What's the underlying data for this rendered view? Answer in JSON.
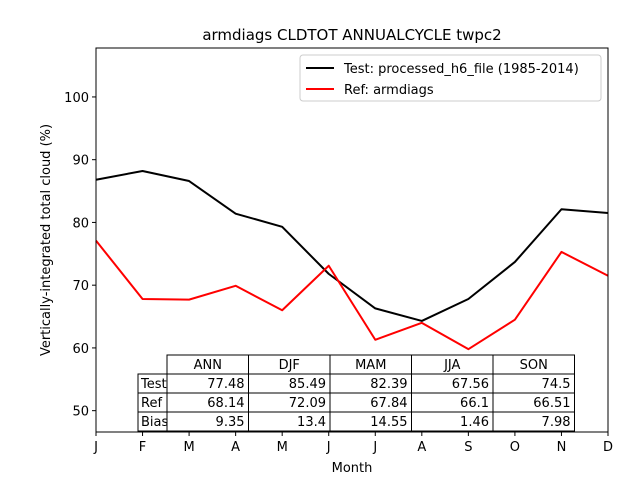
{
  "chart_data": {
    "type": "line",
    "title": "armdiags CLDTOT ANNUALCYCLE twpc2",
    "xlabel": "Month",
    "ylabel": "Vertically-integrated total cloud (%)",
    "x": [
      1,
      2,
      3,
      4,
      5,
      6,
      7,
      8,
      9,
      10,
      11,
      12
    ],
    "x_tick_labels": [
      "J",
      "F",
      "M",
      "A",
      "M",
      "J",
      "J",
      "A",
      "S",
      "O",
      "N",
      "D"
    ],
    "xlim": [
      1,
      12
    ],
    "ylim": [
      46.6,
      107.8
    ],
    "y_ticks": [
      50,
      60,
      70,
      80,
      90,
      100
    ],
    "legend_position": "top-right",
    "series": [
      {
        "name": "Test: processed_h6_file (1985-2014)",
        "color": "#000000",
        "values": [
          86.8,
          88.2,
          86.6,
          81.4,
          79.3,
          71.8,
          66.3,
          64.3,
          67.8,
          73.7,
          82.1,
          81.5
        ]
      },
      {
        "name": "Ref: armdiags",
        "color": "#ff0000",
        "values": [
          77.1,
          67.8,
          67.7,
          69.9,
          66.0,
          73.1,
          61.3,
          64.0,
          59.8,
          64.5,
          75.3,
          71.5
        ]
      }
    ],
    "table": {
      "columns": [
        "ANN",
        "DJF",
        "MAM",
        "JJA",
        "SON"
      ],
      "rows": [
        {
          "label": "Test",
          "values": [
            "77.48",
            "85.49",
            "82.39",
            "67.56",
            "74.5"
          ]
        },
        {
          "label": "Ref",
          "values": [
            "68.14",
            "72.09",
            "67.84",
            "66.1",
            "66.51"
          ]
        },
        {
          "label": "Bias",
          "values": [
            "9.35",
            "13.4",
            "14.55",
            "1.46",
            "7.98"
          ]
        }
      ]
    }
  }
}
